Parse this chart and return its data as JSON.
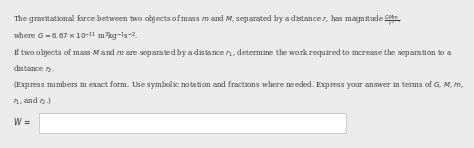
{
  "bg_color": "#ebebeb",
  "content_bg": "#f5f5f5",
  "line1": "The gravitational force between two objects of mass $m$ and $M$, separated by a distance $r$, has magnitude $\\frac{GMm}{r^2}$,",
  "line2": "where $G = 6.67 \\times 10^{-11}$ m$^3$kg$^{-1}$s$^{-2}$.",
  "line3": "If two objects of mass $M$ and $m$ are separated by a distance $r_1$, determine the work required to increase the separation to a",
  "line4": "distance $r_2$.",
  "line5": "(Express numbers in exact form. Use symbolic notation and fractions where needed. Express your answer in terms of $G$, $M$, $m$,",
  "line6": "$r_1$, and $r_2$.)",
  "label": "$W$ =",
  "font_size": 5.0,
  "label_font_size": 5.5,
  "text_color": "#333333",
  "box_color": "#ffffff",
  "box_border": "#cccccc"
}
